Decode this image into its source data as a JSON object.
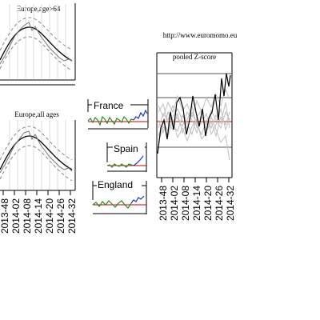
{
  "url_label": "http://www.euromomo.eu",
  "colors": {
    "green": "#2a8a2a",
    "blue": "#2233cc",
    "red": "#cc0000",
    "grey": "#c0c0c0",
    "black": "#000000"
  },
  "chart_data": [
    {
      "type": "line",
      "title": "Europe,age>64",
      "series": [
        {
          "values": [
            0.2,
            0.35,
            0.6,
            0.82,
            0.95,
            1.0,
            0.92,
            0.75,
            0.55,
            0.38,
            0.25,
            0.18
          ]
        },
        {
          "values": [
            0.1,
            0.3,
            0.7,
            0.9,
            1.05,
            0.88,
            0.8,
            0.6,
            0.42,
            0.3,
            0.2,
            0.1
          ]
        }
      ]
    },
    {
      "type": "line",
      "title": "Europe,all ages",
      "x_ticks": [
        "2013-48",
        "2014-02",
        "2014-08",
        "2014-14",
        "2014-20",
        "2014-26",
        "2014-32"
      ],
      "series": [
        {
          "values": [
            0.2,
            0.35,
            0.6,
            0.82,
            0.95,
            1.0,
            0.92,
            0.75,
            0.55,
            0.38,
            0.25,
            0.18
          ]
        },
        {
          "values": [
            0.15,
            0.32,
            0.68,
            0.92,
            1.02,
            0.85,
            0.78,
            0.58,
            0.4,
            0.28,
            0.18,
            0.12
          ]
        }
      ]
    },
    {
      "type": "line",
      "title": "France",
      "series": [
        {
          "values": [
            0,
            1,
            -0.5,
            0.8,
            0.2,
            -1,
            1.2,
            0.4,
            -0.3,
            0.9,
            0.1,
            -0.6,
            0.7,
            0.3,
            -0.2,
            1,
            0.5,
            -0.4,
            0.6,
            0.2
          ]
        },
        {
          "values": [
            0.2,
            1,
            0.6,
            1.5,
            0.9,
            1.8,
            1.2
          ]
        }
      ]
    },
    {
      "type": "line",
      "title": "Spain",
      "series": [
        {
          "values": [
            0,
            0.3,
            -0.4,
            0.5,
            0.1,
            -0.2,
            0.4,
            0,
            -0.3,
            0.3,
            0.1,
            -0.1
          ]
        },
        {
          "values": [
            0.1,
            0.8,
            1.5,
            2.2
          ]
        }
      ]
    },
    {
      "type": "line",
      "title": "England",
      "series": [
        {
          "values": [
            0,
            0.6,
            -0.3,
            0.8,
            0.1,
            1,
            0.3,
            -0.2,
            0.5,
            0.9,
            0.2,
            -0.4,
            0.6
          ]
        },
        {
          "values": [
            0.2,
            1,
            0.6,
            1.3,
            0.9,
            1.6
          ]
        }
      ]
    },
    {
      "type": "line",
      "title": "pooled Z-score",
      "x_ticks": [
        "2013-48",
        "2014-02",
        "2014-08",
        "2014-14",
        "2014-20",
        "2014-26",
        "2014-32"
      ],
      "series": [
        {
          "values": [
            -1,
            0.5,
            -0.2,
            1.2,
            0.8,
            -0.5,
            0.3,
            1.6,
            0.9,
            0.2,
            1.8,
            -0.3,
            0.6,
            -0.8,
            0.4,
            1.1,
            0.2,
            -0.4,
            0.8,
            0.3,
            1.4,
            0.6,
            2.2,
            1.5,
            2.8
          ]
        }
      ]
    }
  ]
}
